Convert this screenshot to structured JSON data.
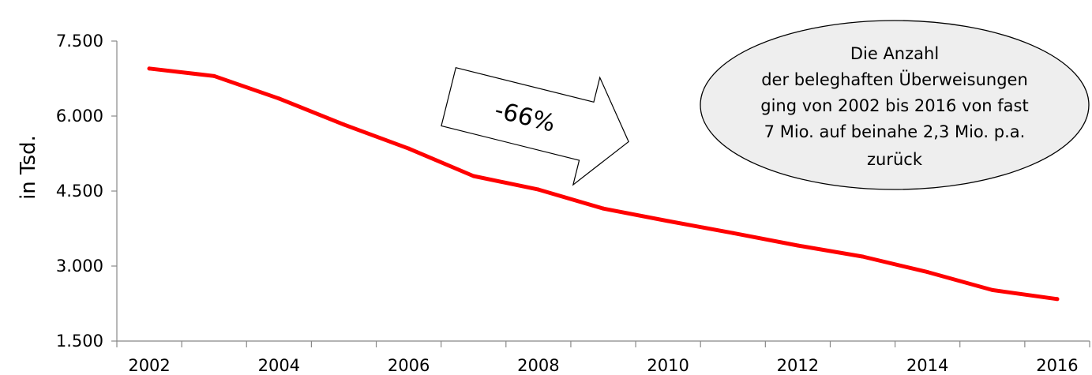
{
  "chart_data": {
    "type": "line",
    "ylabel": "in Tsd.",
    "ylim": [
      1500,
      7500
    ],
    "y_ticks": [
      "7.500",
      "6.000",
      "4.500",
      "3.000",
      "1.500"
    ],
    "y_tick_values": [
      7500,
      6000,
      4500,
      3000,
      1500
    ],
    "x": [
      2002,
      2003,
      2004,
      2005,
      2006,
      2007,
      2008,
      2009,
      2010,
      2011,
      2012,
      2013,
      2014,
      2015,
      2016
    ],
    "x_tick_labels": [
      "2002",
      "2004",
      "2006",
      "2008",
      "2010",
      "2012",
      "2014",
      "2016"
    ],
    "series": [
      {
        "color": "#ff0000",
        "values": [
          6950,
          6800,
          6350,
          5830,
          5350,
          4800,
          4530,
          4150,
          3900,
          3660,
          3410,
          3190,
          2880,
          2520,
          2340
        ]
      }
    ],
    "grid": false,
    "annotations": {
      "arrow_label": "-66%",
      "callout_lines": [
        "Die Anzahl",
        "der beleghaften Überweisungen",
        "ging von 2002 bis 2016  von fast",
        "7 Mio. auf beinahe 2,3 Mio. p.a.",
        "zurück"
      ]
    }
  }
}
